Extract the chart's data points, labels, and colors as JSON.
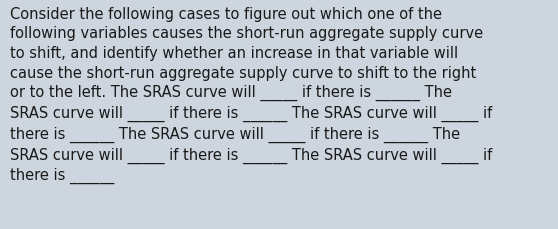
{
  "background_color": "#cdd5de",
  "text_color": "#1a1a1a",
  "font_size": 10.5,
  "figsize": [
    5.58,
    2.3
  ],
  "dpi": 100,
  "lines": [
    "Consider the following cases to figure out which one of the",
    "following variables causes the short-run aggregate supply curve",
    "to shift, and identify whether an increase in that variable will",
    "cause the short-run aggregate supply curve to shift to the right",
    "or to the left. The SRAS curve will _____ if there is ______ The",
    "SRAS curve will _____ if there is ______ The SRAS curve will _____ if",
    "there is ______ The SRAS curve will _____ if there is ______ The",
    "SRAS curve will _____ if there is ______ The SRAS curve will _____ if",
    "there is ______"
  ]
}
